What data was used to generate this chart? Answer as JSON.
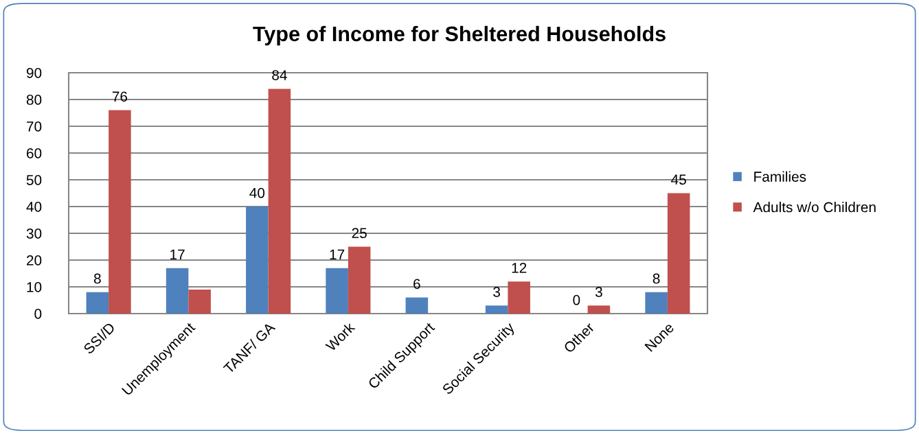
{
  "chart_data": {
    "type": "bar",
    "title": "Type of Income for Sheltered Households",
    "categories": [
      "SSI/D",
      "Unemployment",
      "TANF/ GA",
      "Work",
      "Child Support",
      "Social Security",
      "Other",
      "None"
    ],
    "series": [
      {
        "name": "Families",
        "color": "#4f81bd",
        "values": [
          8,
          17,
          40,
          17,
          6,
          3,
          0,
          8
        ],
        "value_labels": [
          "8",
          "17",
          "40",
          "17",
          "6",
          "3",
          "0",
          "8"
        ]
      },
      {
        "name": "Adults w/o Children",
        "color": "#c0504d",
        "values": [
          76,
          9,
          84,
          25,
          0,
          12,
          3,
          45
        ],
        "value_labels": [
          "76",
          null,
          "84",
          "25",
          null,
          "12",
          "3",
          "45"
        ]
      }
    ],
    "ylim": [
      0,
      90
    ],
    "yticks": [
      0,
      10,
      20,
      30,
      40,
      50,
      60,
      70,
      80,
      90
    ],
    "grid": "y",
    "legend": "right"
  }
}
